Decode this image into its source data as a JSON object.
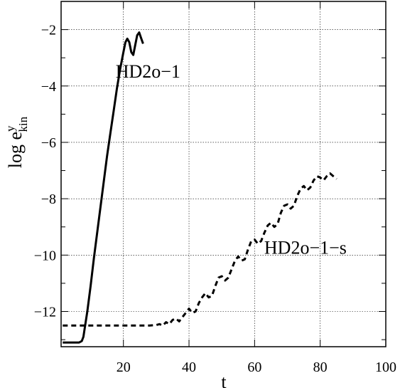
{
  "chart_data": {
    "type": "line",
    "xlabel": "t",
    "ylabel": {
      "base": "log e",
      "sup": "y",
      "sub": "kin"
    },
    "xlim": [
      1,
      100
    ],
    "ylim": [
      -13.25,
      -1
    ],
    "xticks": [
      20,
      40,
      60,
      80,
      100
    ],
    "yticks": [
      -2,
      -4,
      -6,
      -8,
      -10,
      -12
    ],
    "xtick_labels": [
      "20",
      "40",
      "60",
      "80",
      "100"
    ],
    "ytick_labels": [
      "−2",
      "−4",
      "−6",
      "−8",
      "−10",
      "−12"
    ],
    "grid": {
      "horizontal": true,
      "vertical": true,
      "style": "dotted"
    },
    "series": [
      {
        "name": "HD2o−1",
        "style": "solid",
        "color": "#000000",
        "x": [
          1.5,
          4.5,
          6.5,
          7.3,
          7.8,
          8.2,
          9,
          10,
          11,
          12,
          13,
          14,
          15,
          16,
          17,
          18,
          19,
          20,
          20.6,
          21.2,
          21.8,
          22.4,
          23,
          23.6,
          24.2,
          24.8,
          25.4,
          26
        ],
        "y": [
          -13.1,
          -13.1,
          -13.1,
          -13.05,
          -12.9,
          -12.6,
          -12,
          -11.1,
          -10.1,
          -9.2,
          -8.3,
          -7.4,
          -6.5,
          -5.7,
          -4.9,
          -4.1,
          -3.4,
          -2.8,
          -2.45,
          -2.32,
          -2.45,
          -2.8,
          -2.9,
          -2.55,
          -2.2,
          -2.1,
          -2.3,
          -2.5
        ]
      },
      {
        "name": "HD2o−1−s",
        "style": "dashed",
        "color": "#000000",
        "x": [
          1.5,
          10,
          20,
          28,
          30,
          31,
          32,
          33,
          34,
          35,
          36,
          37,
          38,
          39,
          40,
          41,
          42,
          43,
          44,
          45,
          46,
          47,
          48,
          49,
          50,
          51,
          52,
          53,
          54,
          55,
          56,
          57,
          58,
          59,
          60,
          61,
          62,
          63,
          64,
          65,
          66,
          67,
          68,
          69,
          70,
          71,
          72,
          73,
          74,
          75,
          76,
          77,
          78,
          79,
          80,
          81,
          82,
          83,
          84,
          85
        ],
        "y": [
          -12.5,
          -12.5,
          -12.5,
          -12.5,
          -12.48,
          -12.45,
          -12.5,
          -12.38,
          -12.45,
          -12.3,
          -12.25,
          -12.35,
          -12.2,
          -12.05,
          -11.9,
          -12.05,
          -12.0,
          -11.7,
          -11.5,
          -11.35,
          -11.5,
          -11.45,
          -11.1,
          -10.8,
          -10.75,
          -10.9,
          -10.8,
          -10.5,
          -10.2,
          -10.05,
          -10.2,
          -10.15,
          -9.8,
          -9.5,
          -9.45,
          -9.6,
          -9.5,
          -9.2,
          -8.95,
          -8.85,
          -9.0,
          -8.9,
          -8.5,
          -8.25,
          -8.2,
          -8.35,
          -8.25,
          -7.9,
          -7.65,
          -7.55,
          -7.7,
          -7.6,
          -7.35,
          -7.2,
          -7.25,
          -7.35,
          -7.2,
          -7.1,
          -7.2,
          -7.3
        ]
      }
    ],
    "annotations": [
      {
        "text": "HD2o−1",
        "x": 27.5,
        "y": -3.7,
        "anchor": "middle"
      },
      {
        "text": "HD2o−1−s",
        "x": 75.5,
        "y": -9.95,
        "anchor": "middle"
      }
    ]
  }
}
